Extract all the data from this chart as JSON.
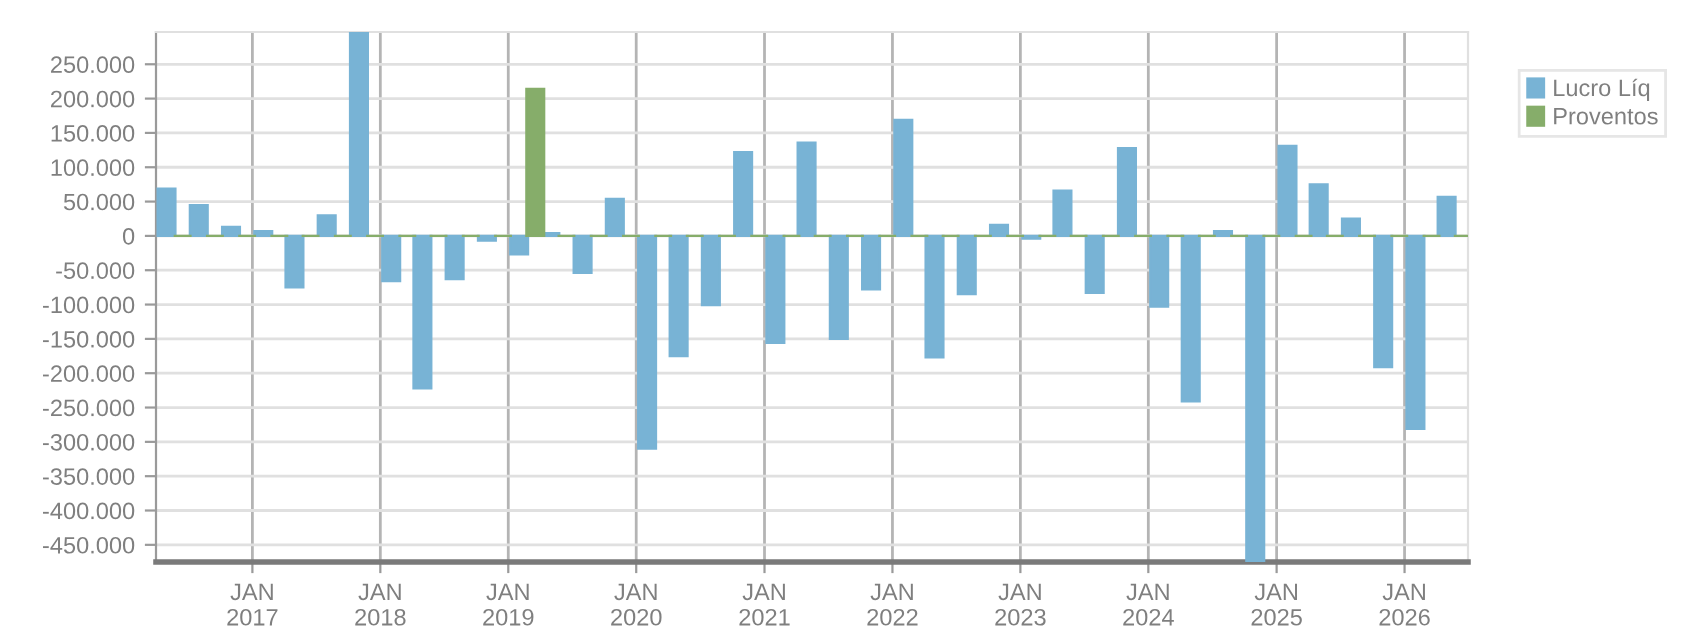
{
  "chart_data": {
    "type": "bar",
    "x": [
      "2016-05",
      "2016-08",
      "2016-11",
      "2017-02",
      "2017-05",
      "2017-08",
      "2017-11",
      "2018-02",
      "2018-05",
      "2018-08",
      "2018-11",
      "2019-02",
      "2019-05",
      "2019-08",
      "2019-11",
      "2020-02",
      "2020-05",
      "2020-08",
      "2020-11",
      "2021-02",
      "2021-05",
      "2021-08",
      "2021-11",
      "2022-02",
      "2022-05",
      "2022-08",
      "2022-11",
      "2023-02",
      "2023-05",
      "2023-08",
      "2023-11",
      "2024-02",
      "2024-05",
      "2024-08",
      "2024-11",
      "2025-02",
      "2025-05",
      "2025-08",
      "2025-11",
      "2026-02",
      "2026-05"
    ],
    "series": [
      {
        "name": "Lucro Líq",
        "color": "#78b3d5",
        "values": [
          69000,
          45000,
          13000,
          7000,
          -75000,
          30000,
          297000,
          -66000,
          -222000,
          -63000,
          -7000,
          -27000,
          4000,
          -54000,
          54000,
          -310000,
          -175000,
          -101000,
          122000,
          -156000,
          136000,
          -150000,
          -78000,
          169000,
          -177000,
          -85000,
          16000,
          -4000,
          66000,
          -83000,
          128000,
          -103000,
          -241000,
          7000,
          -475000,
          131000,
          75000,
          25000,
          -191000,
          -281000,
          57000
        ]
      },
      {
        "name": "Proventos",
        "color": "#86ad6a",
        "values": [
          0,
          0,
          0,
          0,
          0,
          0,
          0,
          0,
          0,
          0,
          0,
          214000,
          0,
          0,
          0,
          0,
          0,
          0,
          0,
          0,
          0,
          0,
          0,
          0,
          0,
          0,
          0,
          0,
          0,
          0,
          0,
          0,
          0,
          0,
          0,
          0,
          0,
          0,
          0,
          0,
          0
        ]
      }
    ],
    "ylim": [
      -475000,
      297000
    ],
    "yticks": [
      {
        "value": -450000,
        "label": "-450.000"
      },
      {
        "value": -400000,
        "label": "-400.000"
      },
      {
        "value": -350000,
        "label": "-350.000"
      },
      {
        "value": -300000,
        "label": "-300.000"
      },
      {
        "value": -250000,
        "label": "-250.000"
      },
      {
        "value": -200000,
        "label": "-200.000"
      },
      {
        "value": -150000,
        "label": "-150.000"
      },
      {
        "value": -100000,
        "label": "-100.000"
      },
      {
        "value": -50000,
        "label": "-50.000"
      },
      0,
      {
        "value": 50000,
        "label": "50.000"
      },
      {
        "value": 100000,
        "label": "100.000"
      },
      {
        "value": 150000,
        "label": "150.000"
      },
      {
        "value": 200000,
        "label": "200.000"
      },
      {
        "value": 250000,
        "label": "250.000"
      }
    ],
    "xlim": [
      "2016-04",
      "2026-07"
    ],
    "xticks": [
      {
        "value": "2017-01",
        "label": "JAN\n2017"
      },
      {
        "value": "2018-01",
        "label": "JAN\n2018"
      },
      {
        "value": "2019-01",
        "label": "JAN\n2019"
      },
      {
        "value": "2020-01",
        "label": "JAN\n2020"
      },
      {
        "value": "2021-01",
        "label": "JAN\n2021"
      },
      {
        "value": "2022-01",
        "label": "JAN\n2022"
      },
      {
        "value": "2023-01",
        "label": "JAN\n2023"
      },
      {
        "value": "2024-01",
        "label": "JAN\n2024"
      },
      {
        "value": "2025-01",
        "label": "JAN\n2025"
      },
      {
        "value": "2026-01",
        "label": "JAN\n2026"
      }
    ],
    "grid": true,
    "legend": "top right"
  }
}
